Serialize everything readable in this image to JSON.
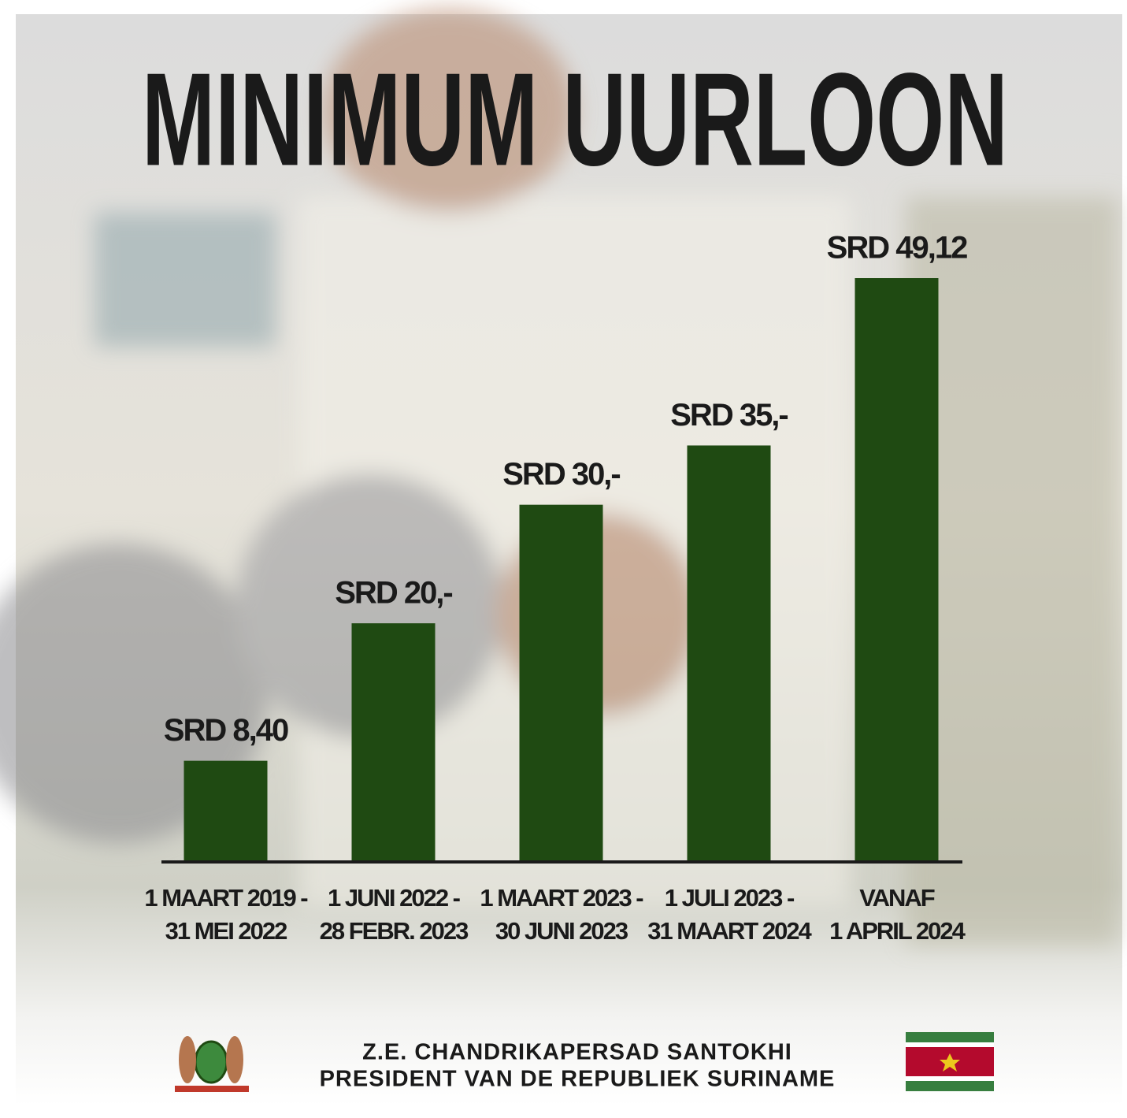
{
  "chart_data": {
    "type": "bar",
    "title": "MINIMUM UURLOON",
    "categories": [
      [
        "1 MAART 2019 -",
        "31 MEI 2022"
      ],
      [
        "1 JUNI 2022 -",
        "28 FEBR. 2023"
      ],
      [
        "1 MAART 2023 -",
        "30 JUNI 2023"
      ],
      [
        "1 JULI 2023 -",
        "31 MAART 2024"
      ],
      [
        "VANAF",
        "1 APRIL 2024"
      ]
    ],
    "values": [
      8.4,
      20,
      30,
      35,
      49.12
    ],
    "value_labels": [
      "SRD 8,40",
      "SRD 20,-",
      "SRD 30,-",
      "SRD 35,-",
      "SRD 49,12"
    ],
    "color": "#1f4a12"
  },
  "footer": {
    "lines": [
      "Z.E. CHANDRIKAPERSAD SANTOKHI",
      "PRESIDENT VAN DE REPUBLIEK SURINAME"
    ]
  }
}
